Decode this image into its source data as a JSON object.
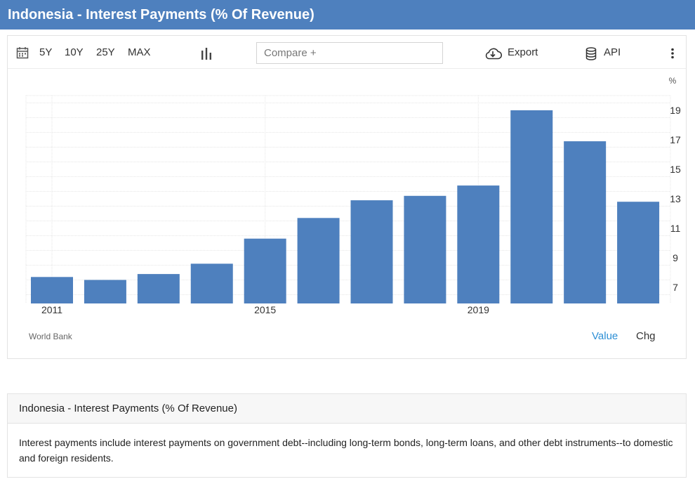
{
  "page": {
    "title": "Indonesia - Interest Payments (% Of Revenue)"
  },
  "toolbar": {
    "ranges": [
      "5Y",
      "10Y",
      "25Y",
      "MAX"
    ],
    "compare_placeholder": "Compare +",
    "export_label": "Export",
    "api_label": "API",
    "icons": [
      "calendar-icon",
      "bar-chart-icon",
      "cloud-download-icon",
      "database-icon",
      "more-vertical-icon"
    ]
  },
  "chart_data": {
    "type": "bar",
    "title": "",
    "xlabel": "",
    "ylabel": "%",
    "x": [
      2011,
      2012,
      2013,
      2014,
      2015,
      2016,
      2017,
      2018,
      2019,
      2020,
      2021,
      2022
    ],
    "values": [
      7.7,
      7.5,
      7.9,
      8.6,
      10.3,
      11.7,
      12.9,
      13.2,
      13.9,
      19.0,
      16.9,
      12.8
    ],
    "x_tick_labels": [
      "2011",
      "2015",
      "2019"
    ],
    "y_ticks": [
      7,
      9,
      11,
      13,
      15,
      17,
      19
    ],
    "ylim": [
      6.0,
      20.0
    ],
    "grid": true,
    "bar_color": "#4e80be",
    "source": "World Bank",
    "y_axis_position": "right"
  },
  "chart_footer": {
    "source": "World Bank",
    "value_label": "Value",
    "chg_label": "Chg"
  },
  "colors": {
    "header": "#4e80be",
    "bar": "#4e80be",
    "link": "#2d8fd5"
  },
  "description": {
    "heading": "Indonesia - Interest Payments (% Of Revenue)",
    "text": "Interest payments include interest payments on government debt--including long-term bonds, long-term loans, and other debt instruments--to domestic and foreign residents."
  }
}
